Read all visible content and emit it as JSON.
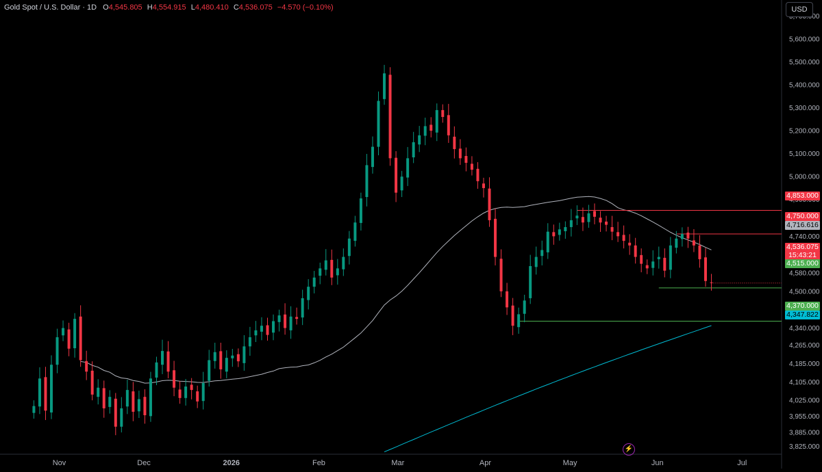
{
  "legend": {
    "symbol": "Gold Spot / U.S. Dollar · 1D",
    "open_label": "O",
    "open": "4,545.805",
    "high_label": "H",
    "high": "4,554.915",
    "low_label": "L",
    "low": "4,480.410",
    "close_label": "C",
    "close": "4,536.075",
    "change": "−4.570 (−0.10%)"
  },
  "currency": "USD",
  "price_tags": {
    "r4853": "4,853.000",
    "r4750": "4,750.000",
    "ma_fast": "4,716.616",
    "last": "4,536.075",
    "countdown": "15:43:21",
    "s4515": "4,515.000",
    "s4370": "4,370.000",
    "ma_slow": "4,347.822"
  },
  "colors": {
    "up": "#089981",
    "down": "#f23645",
    "ma_fast": "#b2b5be",
    "ma_slow": "#00bcd4",
    "support": "#4caf50",
    "resistance": "#f23645",
    "background": "#000000"
  },
  "icons": {
    "bolt": "lightning-bolt-icon"
  },
  "chart_data": {
    "type": "candlestick",
    "title": "Gold Spot / U.S. Dollar · 1D",
    "ylim": [
      3790,
      5740
    ],
    "y_ticks": [
      "5,700.000",
      "5,600.000",
      "5,500.000",
      "5,400.000",
      "5,300.000",
      "5,200.000",
      "5,100.000",
      "5,000.000",
      "4,900.000",
      "4,820.000",
      "4,740.000",
      "4,660.000",
      "4,580.000",
      "4,500.000",
      "4,420.000",
      "4,340.000",
      "4,265.000",
      "4,185.000",
      "4,105.000",
      "4,025.000",
      "3,955.000",
      "3,885.000",
      "3,825.000"
    ],
    "x_ticks": [
      {
        "label": "Nov",
        "day": 9
      },
      {
        "label": "Dec",
        "day": 39
      },
      {
        "label": "2026",
        "day": 70
      },
      {
        "label": "Feb",
        "day": 101
      },
      {
        "label": "Mar",
        "day": 129
      },
      {
        "label": "Apr",
        "day": 160
      },
      {
        "label": "May",
        "day": 190
      },
      {
        "label": "Jun",
        "day": 221
      },
      {
        "label": "Jul",
        "day": 251
      }
    ],
    "day_range": [
      -12,
      265
    ],
    "closes": [
      4000,
      4120,
      3980,
      4180,
      4300,
      4340,
      4250,
      4380,
      4200,
      4150,
      4050,
      4080,
      3990,
      4040,
      3910,
      3990,
      4070,
      3975,
      4030,
      3960,
      4120,
      4190,
      4240,
      4150,
      4080,
      4035,
      4085,
      4070,
      4020,
      4100,
      4200,
      4235,
      4160,
      4210,
      4220,
      4195,
      4260,
      4300,
      4330,
      4350,
      4310,
      4370,
      4395,
      4340,
      4390,
      4380,
      4470,
      4520,
      4560,
      4600,
      4635,
      4560,
      4600,
      4650,
      4730,
      4800,
      4905,
      5050,
      5130,
      5330,
      5450,
      5080,
      4930,
      5000,
      5080,
      5150,
      5180,
      5220,
      5200,
      5290,
      5260,
      5180,
      5120,
      5080,
      5060,
      5030,
      4980,
      4950,
      4810,
      4650,
      4500,
      4430,
      4350,
      4400,
      4460,
      4610,
      4650,
      4680,
      4760,
      4740,
      4770,
      4780,
      4810,
      4830,
      4800,
      4840,
      4825,
      4800,
      4790,
      4760,
      4740,
      4720,
      4700,
      4650,
      4620,
      4600,
      4630,
      4650,
      4590,
      4700,
      4730,
      4750,
      4730,
      4700,
      4640,
      4545,
      4536
    ],
    "moving_averages": [
      {
        "name": "MA fast",
        "last": 4716.616
      },
      {
        "name": "MA slow",
        "last": 4347.822
      }
    ],
    "levels": [
      {
        "value": 4853,
        "kind": "resistance"
      },
      {
        "value": 4750,
        "kind": "resistance"
      },
      {
        "value": 4515,
        "kind": "support"
      },
      {
        "value": 4370,
        "kind": "support"
      }
    ],
    "grid": false
  }
}
